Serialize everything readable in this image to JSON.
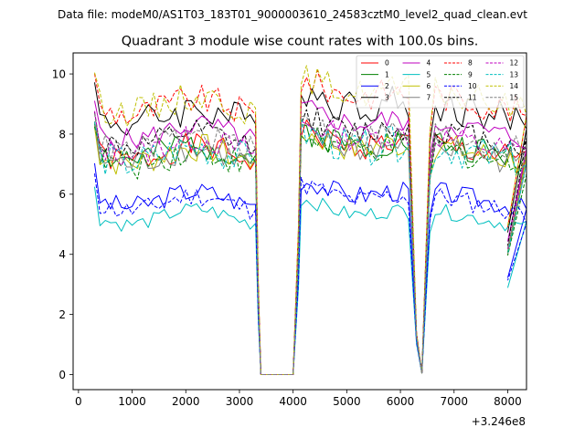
{
  "suptitle": "Data file: modeM0/AS1T03_183T01_9000003610_24583cztM0_level2_quad_clean.evt",
  "chart_data": {
    "type": "line",
    "title": "Quadrant 3 module wise count rates with 100.0s bins.",
    "xlabel": "",
    "ylabel": "",
    "x_offset_label": "+3.246e8",
    "xlim": [
      -100,
      8350
    ],
    "ylim": [
      -0.5,
      10.7
    ],
    "xticks": [
      0,
      1000,
      2000,
      3000,
      4000,
      5000,
      6000,
      7000,
      8000
    ],
    "xtick_labels": [
      "0",
      "1000",
      "2000",
      "3000",
      "4000",
      "5000",
      "6000",
      "7000",
      "8000"
    ],
    "yticks": [
      0,
      2,
      4,
      6,
      8,
      10
    ],
    "ytick_labels": [
      "0",
      "2",
      "4",
      "6",
      "8",
      "10"
    ],
    "legend_position": "top-right",
    "legend_columns": 4,
    "x_segments": [
      {
        "start": 300,
        "step": 100,
        "n": 31
      },
      {
        "start": 4150,
        "step": 100,
        "n": 21
      },
      {
        "start": 6200,
        "step": 100,
        "n": 19
      }
    ],
    "series": [
      {
        "name": "0",
        "color": "#ff0000",
        "dash": "solid",
        "base": 7.35,
        "amp": 0.45,
        "seed": 1
      },
      {
        "name": "1",
        "color": "#008000",
        "dash": "solid",
        "base": 7.4,
        "amp": 0.5,
        "seed": 2
      },
      {
        "name": "2",
        "color": "#0000ff",
        "dash": "solid",
        "base": 5.85,
        "amp": 0.35,
        "seed": 3
      },
      {
        "name": "3",
        "color": "#000000",
        "dash": "solid",
        "base": 8.6,
        "amp": 0.6,
        "seed": 4
      },
      {
        "name": "4",
        "color": "#bf00bf",
        "dash": "solid",
        "base": 8.05,
        "amp": 0.4,
        "seed": 5
      },
      {
        "name": "5",
        "color": "#00bfbf",
        "dash": "solid",
        "base": 5.25,
        "amp": 0.25,
        "seed": 6
      },
      {
        "name": "6",
        "color": "#bfbf00",
        "dash": "solid",
        "base": 7.3,
        "amp": 0.5,
        "seed": 7
      },
      {
        "name": "7",
        "color": "#808080",
        "dash": "solid",
        "base": 7.25,
        "amp": 0.45,
        "seed": 8
      },
      {
        "name": "8",
        "color": "#ff0000",
        "dash": "dashed",
        "base": 8.9,
        "amp": 0.5,
        "seed": 9
      },
      {
        "name": "9",
        "color": "#008000",
        "dash": "dashed",
        "base": 7.2,
        "amp": 0.5,
        "seed": 10
      },
      {
        "name": "10",
        "color": "#0000ff",
        "dash": "dashed",
        "base": 5.7,
        "amp": 0.35,
        "seed": 11
      },
      {
        "name": "11",
        "color": "#000000",
        "dash": "dashed",
        "base": 7.8,
        "amp": 0.45,
        "seed": 12
      },
      {
        "name": "12",
        "color": "#bf00bf",
        "dash": "dashed",
        "base": 7.6,
        "amp": 0.45,
        "seed": 13
      },
      {
        "name": "13",
        "color": "#00bfbf",
        "dash": "dashed",
        "base": 7.3,
        "amp": 0.6,
        "seed": 14
      },
      {
        "name": "14",
        "color": "#bfbf00",
        "dash": "dashed",
        "base": 9.0,
        "amp": 0.5,
        "seed": 15
      },
      {
        "name": "15",
        "color": "#808080",
        "dash": "dashed",
        "base": 7.7,
        "amp": 0.45,
        "seed": 16
      }
    ]
  }
}
